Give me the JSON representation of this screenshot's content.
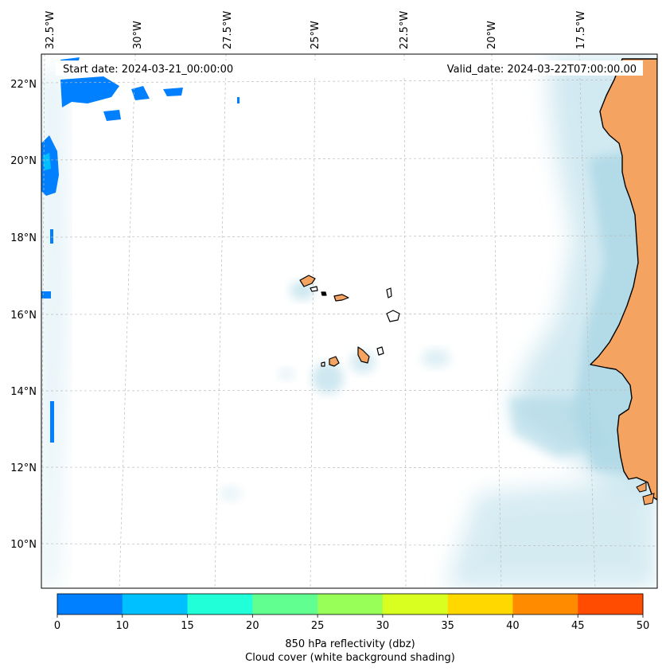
{
  "header": {
    "start_date": "Start date: 2024-03-21_00:00:00",
    "valid_date": "Valid_date: 2024-03-22T07:00:00.00"
  },
  "map": {
    "lon_labels": [
      "32.5°W",
      "30°W",
      "27.5°W",
      "25°W",
      "22.5°W",
      "20°W",
      "17.5°W"
    ],
    "lat_labels": [
      "22°N",
      "20°N",
      "18°N",
      "16°N",
      "14°N",
      "12°N",
      "10°N"
    ],
    "gridlines": true,
    "colors": {
      "land": "#f4a460",
      "cloud": "#add8e6",
      "reflectivity_low": "#0080ff",
      "reflectivity_mid": "#00bfff"
    }
  },
  "colorbar": {
    "ticks": [
      "0",
      "10",
      "15",
      "20",
      "25",
      "30",
      "35",
      "40",
      "45",
      "50"
    ],
    "colors": [
      "#0080ff",
      "#00c0ff",
      "#20ffd8",
      "#60ff90",
      "#98ff58",
      "#d8ff20",
      "#ffd800",
      "#ff8c00",
      "#ff4c00"
    ],
    "label_line1": "850 hPa reflectivity (dbz)",
    "label_line2": "Cloud cover (white background shading)"
  }
}
